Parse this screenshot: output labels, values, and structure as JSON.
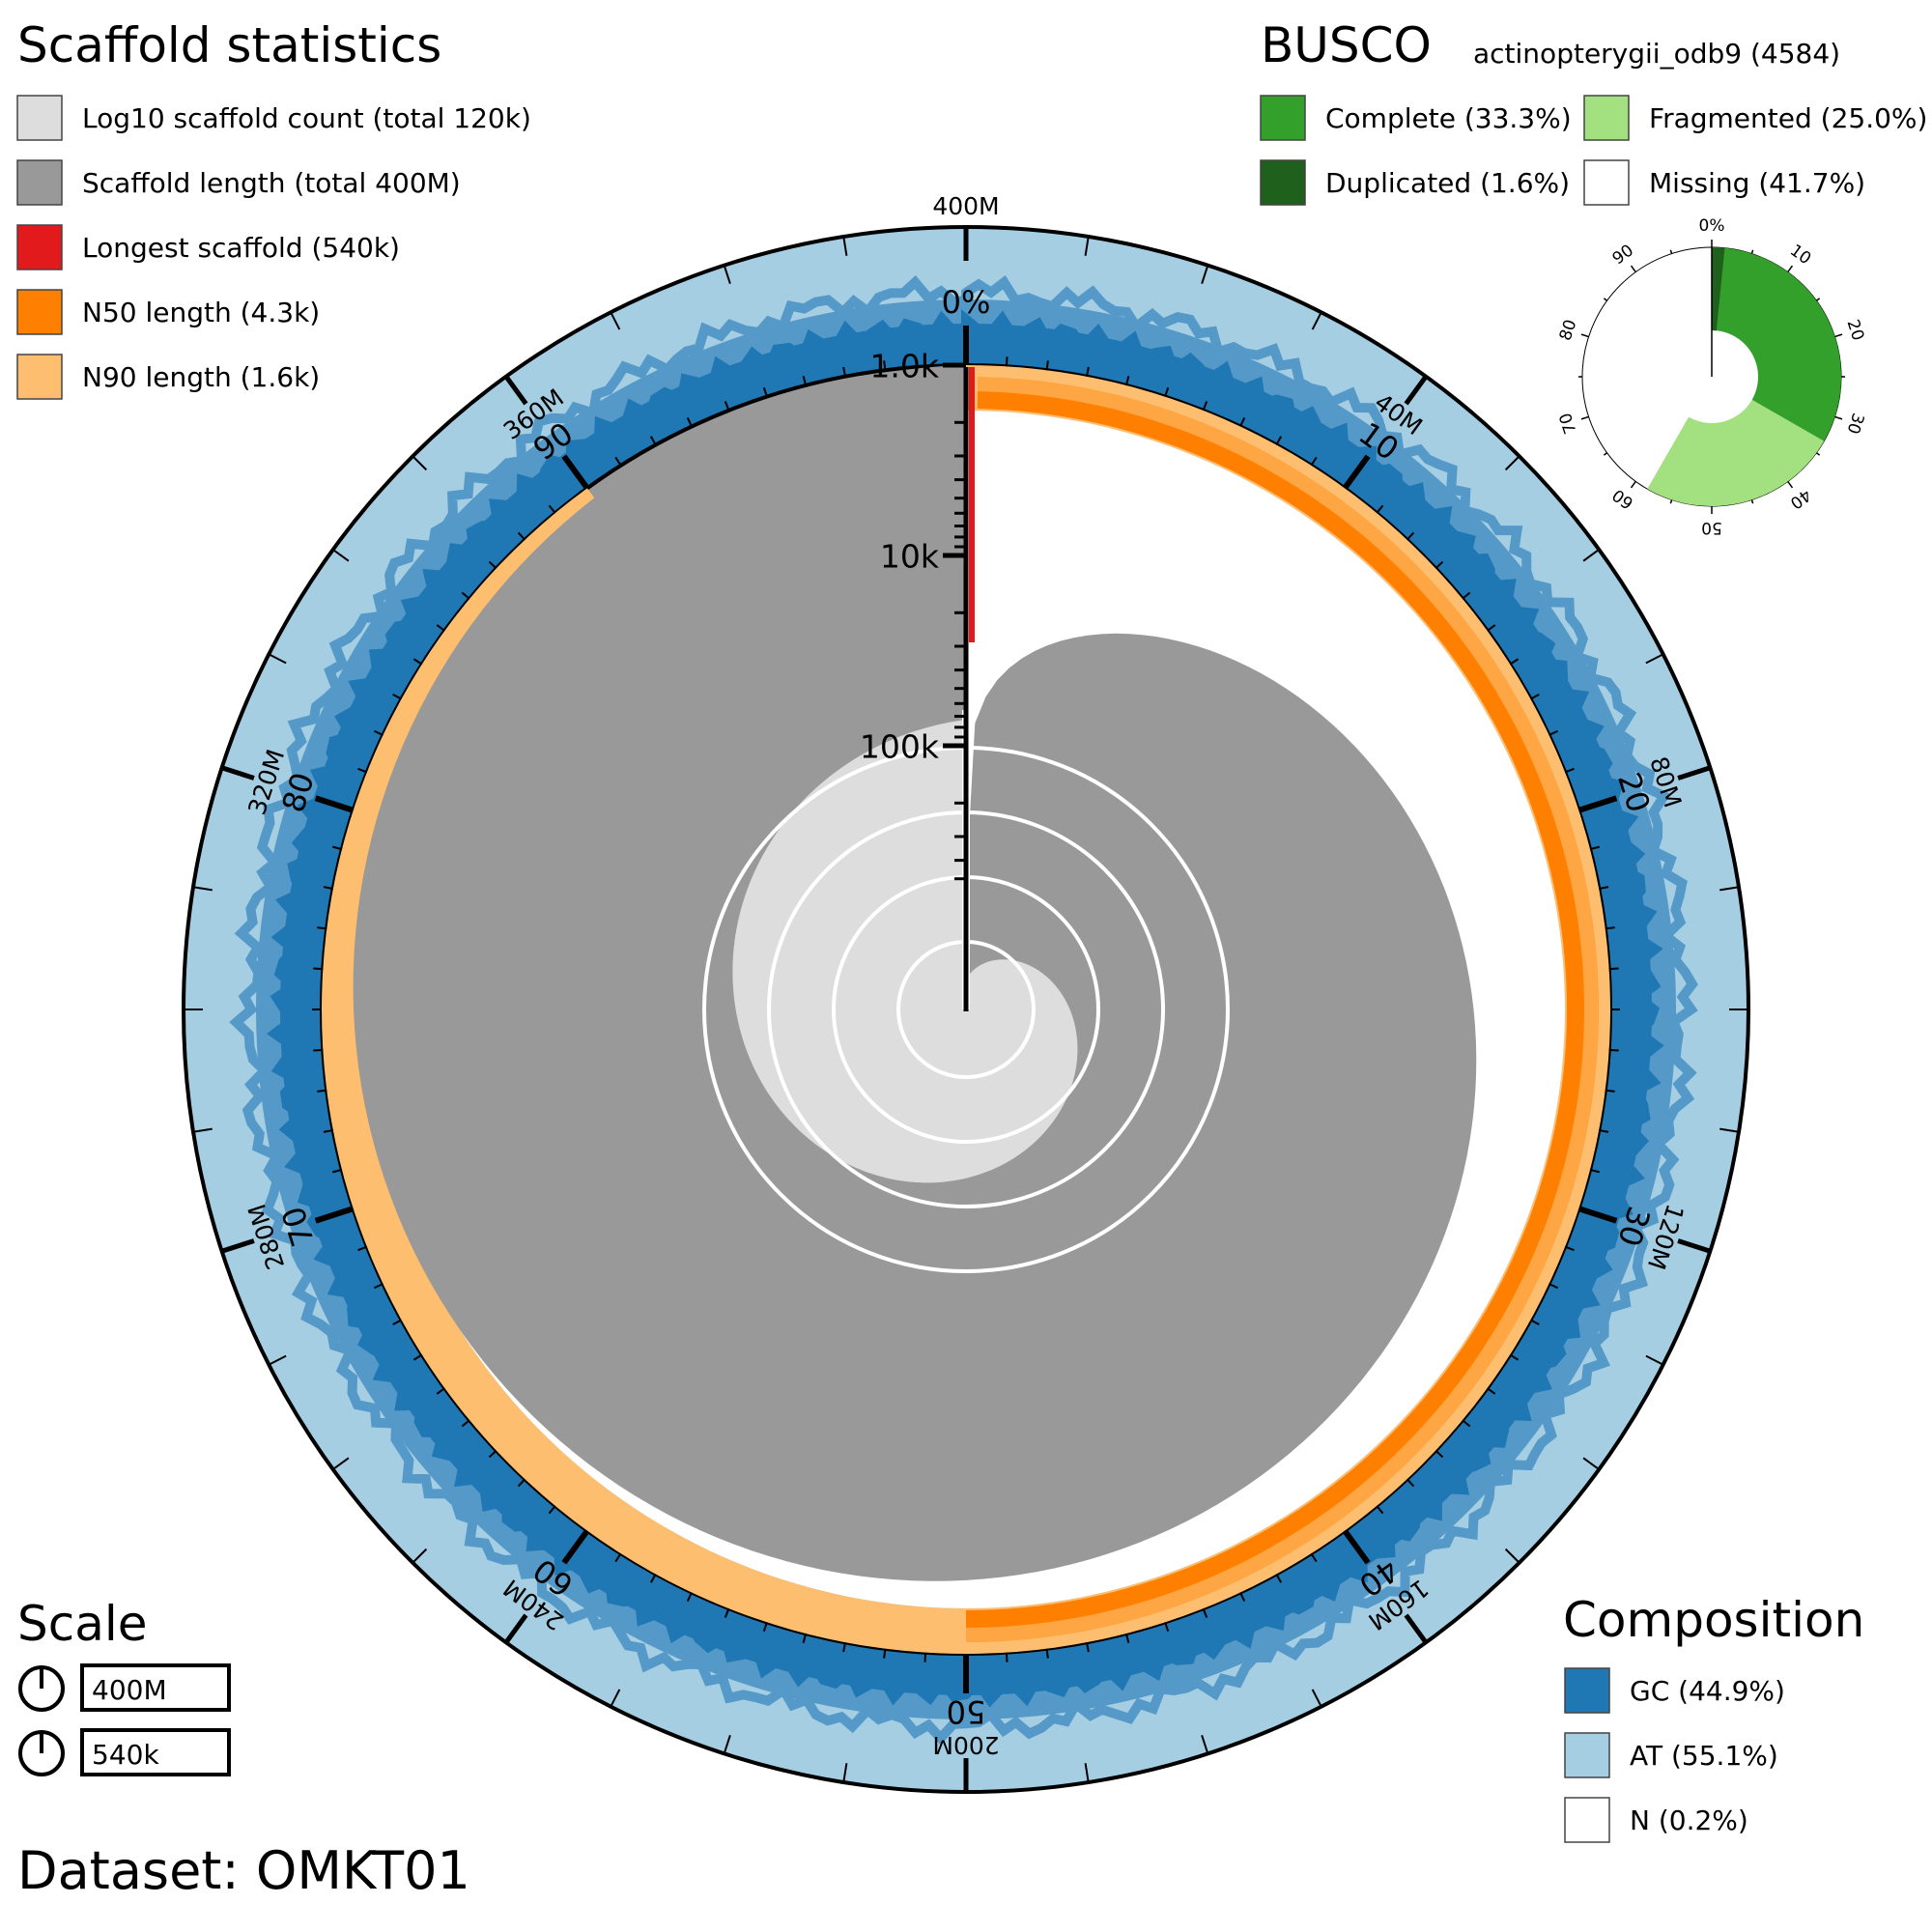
{
  "chart_data": {
    "type": "snail",
    "dataset": "Dataset: OMKT01",
    "scaffold_stats": {
      "heading": "Scaffold statistics",
      "legend": [
        {
          "label": "Log10 scaffold count (total 120k)",
          "color": "#dddddd"
        },
        {
          "label": "Scaffold length (total 400M)",
          "color": "#999999"
        },
        {
          "label": "Longest scaffold (540k)",
          "color": "#e31a1c"
        },
        {
          "label": "N50 length (4.3k)",
          "color": "#ff7f00"
        },
        {
          "label": "N90 length (1.6k)",
          "color": "#fdbf6f"
        }
      ],
      "total_length": 400000000,
      "longest_scaffold": 540000,
      "n50": 4300,
      "n90": 1600,
      "n50_extent_percent": 50,
      "n90_extent_percent": 90
    },
    "busco": {
      "heading": "BUSCO",
      "lineage": "actinopterygii_odb9 (4584)",
      "legend": [
        {
          "label": "Complete (33.3%)",
          "color": "#33a02c"
        },
        {
          "label": "Fragmented (25.0%)",
          "color": "#a3e07f"
        },
        {
          "label": "Duplicated (1.6%)",
          "color": "#1f611c"
        },
        {
          "label": "Missing (41.7%)",
          "color": "#ffffff"
        }
      ],
      "values": {
        "complete": 33.3,
        "duplicated": 1.6,
        "fragmented": 25.0,
        "missing": 41.7
      },
      "ticks": [
        "0%",
        "10",
        "20",
        "30",
        "40",
        "50",
        "60",
        "70",
        "80",
        "90"
      ]
    },
    "composition": {
      "heading": "Composition",
      "legend": [
        {
          "label": "GC (44.9%)",
          "color": "#1f78b4"
        },
        {
          "label": "AT (55.1%)",
          "color": "#a6cee3"
        },
        {
          "label": "N (0.2%)",
          "color": "#ffffff"
        }
      ],
      "gc_percent": 44.9
    },
    "scale": {
      "heading": "Scale",
      "items": [
        "400M",
        "540k"
      ]
    },
    "circumference_axis": {
      "labels": [
        "400M",
        "40M",
        "80M",
        "120M",
        "160M",
        "200M",
        "240M",
        "280M",
        "320M",
        "360M"
      ],
      "values": [
        400,
        40,
        80,
        120,
        160,
        200,
        240,
        280,
        320,
        360
      ],
      "unit_max": 400
    },
    "percent_axis": {
      "labels": [
        "0%",
        "10",
        "20",
        "30",
        "40",
        "50",
        "60",
        "70",
        "80",
        "90"
      ],
      "values": [
        0,
        10,
        20,
        30,
        40,
        50,
        60,
        70,
        80,
        90
      ]
    },
    "radial_axis": {
      "labels": [
        "1.0k",
        "10k",
        "100k"
      ],
      "values": [
        1000,
        10000,
        100000
      ]
    }
  }
}
